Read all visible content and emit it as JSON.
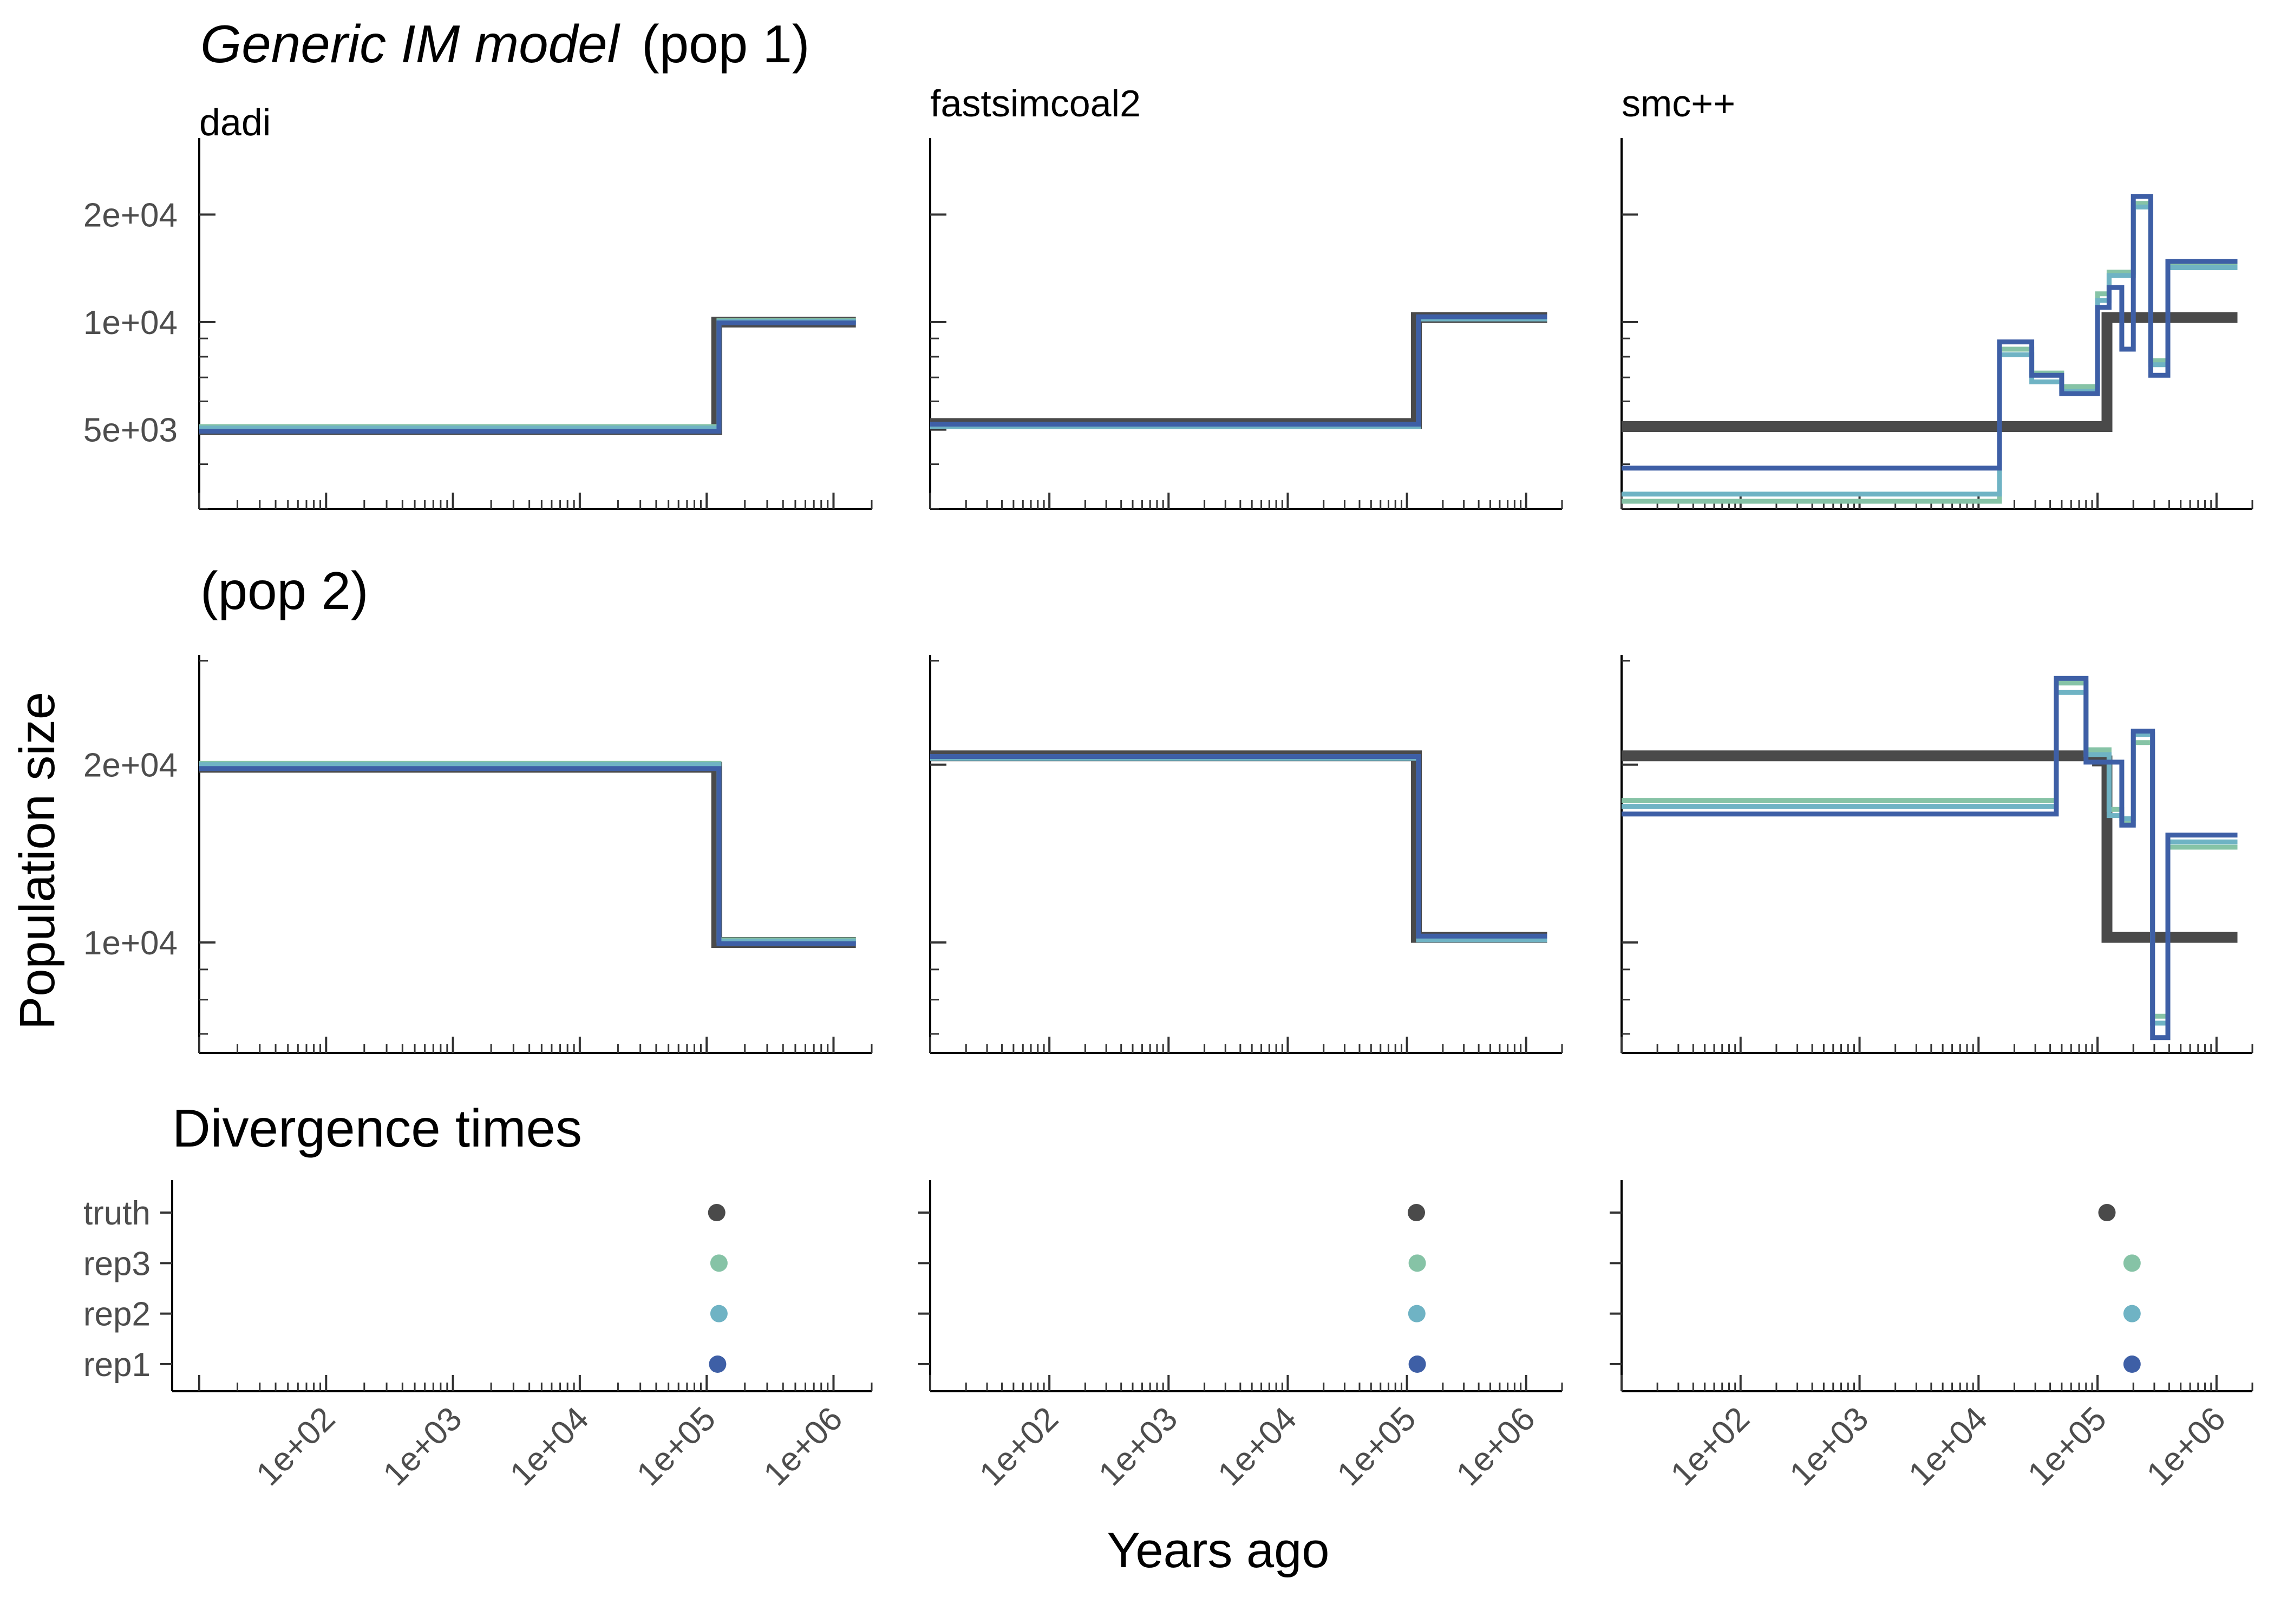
{
  "figure": {
    "title_italic": "Generic IM model",
    "title_pop1": "(pop 1)",
    "title_pop2": "(pop 2)",
    "title_div": "Divergence times",
    "ylabel": "Population size",
    "xlabel": "Years ago"
  },
  "colors": {
    "truth": "#4a4a4a",
    "rep1": "#3e5fa6",
    "rep2": "#6fb3c4",
    "rep3": "#86c3a6"
  },
  "chart_data": [
    {
      "type": "line",
      "panel": "pop1-dadi",
      "subtitle": "dadi",
      "x_scale": "log",
      "y_scale": "log",
      "xlim": [
        10,
        2000000
      ],
      "ylim": [
        3000,
        28000
      ],
      "yticks": [
        5000,
        10000,
        20000
      ],
      "ytick_labels": [
        "5e+03",
        "1e+04",
        "2e+04"
      ],
      "series": [
        {
          "name": "truth",
          "x": [
            10,
            120000,
            120000,
            1500000
          ],
          "y": [
            5000,
            5000,
            10000,
            10000
          ]
        },
        {
          "name": "rep3",
          "x": [
            10,
            125000,
            125000,
            1500000
          ],
          "y": [
            5100,
            5100,
            10100,
            10100
          ]
        },
        {
          "name": "rep2",
          "x": [
            10,
            125000,
            125000,
            1500000
          ],
          "y": [
            5050,
            5050,
            10050,
            10050
          ]
        },
        {
          "name": "rep1",
          "x": [
            10,
            125000,
            125000,
            1500000
          ],
          "y": [
            4950,
            4950,
            9950,
            9950
          ]
        }
      ]
    },
    {
      "type": "line",
      "panel": "pop1-fastsimcoal2",
      "subtitle": "fastsimcoal2",
      "x_scale": "log",
      "y_scale": "log",
      "xlim": [
        10,
        2000000
      ],
      "ylim": [
        3000,
        28000
      ],
      "series": [
        {
          "name": "truth",
          "x": [
            10,
            120000,
            120000,
            1500000
          ],
          "y": [
            5200,
            5200,
            10300,
            10300
          ]
        },
        {
          "name": "rep3",
          "x": [
            10,
            125000,
            125000,
            1500000
          ],
          "y": [
            5150,
            5150,
            10250,
            10250
          ]
        },
        {
          "name": "rep2",
          "x": [
            10,
            125000,
            125000,
            1500000
          ],
          "y": [
            5100,
            5100,
            10200,
            10200
          ]
        },
        {
          "name": "rep1",
          "x": [
            10,
            125000,
            125000,
            1500000
          ],
          "y": [
            5180,
            5180,
            10350,
            10350
          ]
        }
      ]
    },
    {
      "type": "line",
      "panel": "pop1-smcpp",
      "subtitle": "smc++",
      "x_scale": "log",
      "y_scale": "log",
      "xlim": [
        10,
        2000000
      ],
      "ylim": [
        3000,
        28000
      ],
      "series": [
        {
          "name": "truth",
          "x": [
            10,
            120000,
            120000,
            1500000
          ],
          "y": [
            5100,
            5100,
            10300,
            10300
          ]
        },
        {
          "name": "rep3",
          "x": [
            10,
            15000,
            15000,
            28000,
            28000,
            50000,
            50000,
            100000,
            100000,
            125000,
            125000,
            200000,
            200000,
            280000,
            280000,
            390000,
            390000,
            1500000
          ],
          "y": [
            3150,
            3150,
            8400,
            8400,
            7200,
            7200,
            6600,
            6600,
            12000,
            12000,
            13800,
            13800,
            21500,
            21500,
            7800,
            7800,
            14400,
            14400
          ]
        },
        {
          "name": "rep2",
          "x": [
            10,
            15000,
            15000,
            28000,
            28000,
            50000,
            50000,
            100000,
            100000,
            125000,
            125000,
            200000,
            200000,
            280000,
            280000,
            390000,
            390000,
            1500000
          ],
          "y": [
            3300,
            3300,
            8100,
            8100,
            6800,
            6800,
            6400,
            6400,
            11500,
            11500,
            13500,
            13500,
            21000,
            21000,
            7600,
            7600,
            14200,
            14200
          ]
        },
        {
          "name": "rep1",
          "x": [
            10,
            15000,
            15000,
            28000,
            28000,
            50000,
            50000,
            100000,
            100000,
            125000,
            125000,
            160000,
            160000,
            200000,
            200000,
            280000,
            280000,
            390000,
            390000,
            1500000
          ],
          "y": [
            3900,
            3900,
            8800,
            8800,
            7100,
            7100,
            6300,
            6300,
            11000,
            11000,
            12500,
            12500,
            8400,
            8400,
            22500,
            22500,
            7100,
            7100,
            14800,
            14800
          ]
        }
      ]
    },
    {
      "type": "line",
      "panel": "pop2-dadi",
      "x_scale": "log",
      "y_scale": "log",
      "xlim": [
        10,
        2000000
      ],
      "ylim": [
        6500,
        32000
      ],
      "yticks": [
        10000,
        20000
      ],
      "ytick_labels": [
        "1e+04",
        "2e+04"
      ],
      "series": [
        {
          "name": "truth",
          "x": [
            10,
            120000,
            120000,
            1500000
          ],
          "y": [
            19800,
            19800,
            10000,
            10000
          ]
        },
        {
          "name": "rep3",
          "x": [
            10,
            125000,
            125000,
            1500000
          ],
          "y": [
            20100,
            20100,
            10100,
            10100
          ]
        },
        {
          "name": "rep2",
          "x": [
            10,
            125000,
            125000,
            1500000
          ],
          "y": [
            20000,
            20000,
            10050,
            10050
          ]
        },
        {
          "name": "rep1",
          "x": [
            10,
            125000,
            125000,
            1500000
          ],
          "y": [
            19700,
            19700,
            9950,
            9950
          ]
        }
      ]
    },
    {
      "type": "line",
      "panel": "pop2-fastsimcoal2",
      "x_scale": "log",
      "y_scale": "log",
      "xlim": [
        10,
        2000000
      ],
      "ylim": [
        6500,
        32000
      ],
      "series": [
        {
          "name": "truth",
          "x": [
            10,
            120000,
            120000,
            1500000
          ],
          "y": [
            20700,
            20700,
            10200,
            10200
          ]
        },
        {
          "name": "rep3",
          "x": [
            10,
            125000,
            125000,
            1500000
          ],
          "y": [
            20600,
            20600,
            10150,
            10150
          ]
        },
        {
          "name": "rep2",
          "x": [
            10,
            125000,
            125000,
            1500000
          ],
          "y": [
            20500,
            20500,
            10100,
            10100
          ]
        },
        {
          "name": "rep1",
          "x": [
            10,
            125000,
            125000,
            1500000
          ],
          "y": [
            20650,
            20650,
            10250,
            10250
          ]
        }
      ]
    },
    {
      "type": "line",
      "panel": "pop2-smcpp",
      "x_scale": "log",
      "y_scale": "log",
      "xlim": [
        10,
        2000000
      ],
      "ylim": [
        6500,
        32000
      ],
      "series": [
        {
          "name": "truth",
          "x": [
            10,
            100000,
            100000,
            120000,
            120000,
            1500000
          ],
          "y": [
            20700,
            20700,
            20300,
            20300,
            10200,
            10200
          ]
        },
        {
          "name": "rep3",
          "x": [
            10,
            45000,
            45000,
            80000,
            80000,
            125000,
            125000,
            160000,
            160000,
            200000,
            200000,
            290000,
            290000,
            390000,
            390000,
            1500000
          ],
          "y": [
            17400,
            17400,
            27500,
            27500,
            21200,
            21200,
            16800,
            16800,
            15900,
            15900,
            21800,
            21800,
            7500,
            7500,
            14500,
            14500
          ]
        },
        {
          "name": "rep2",
          "x": [
            10,
            45000,
            45000,
            80000,
            80000,
            125000,
            125000,
            160000,
            160000,
            200000,
            200000,
            290000,
            290000,
            390000,
            390000,
            1500000
          ],
          "y": [
            17000,
            17000,
            26500,
            26500,
            20800,
            20800,
            16400,
            16400,
            16200,
            16200,
            22500,
            22500,
            7300,
            7300,
            14800,
            14800
          ]
        },
        {
          "name": "rep1",
          "x": [
            10,
            45000,
            45000,
            80000,
            80000,
            160000,
            160000,
            200000,
            200000,
            290000,
            290000,
            390000,
            390000,
            1500000
          ],
          "y": [
            16500,
            16500,
            28000,
            28000,
            20200,
            20200,
            15800,
            15800,
            22800,
            22800,
            6900,
            6900,
            15200,
            15200
          ]
        }
      ]
    },
    {
      "type": "scatter",
      "panel": "div-dadi",
      "x_scale": "log",
      "xlim": [
        10,
        2000000
      ],
      "categories": [
        "rep1",
        "rep2",
        "rep3",
        "truth"
      ],
      "points": [
        {
          "name": "truth",
          "x": 120000
        },
        {
          "name": "rep3",
          "x": 125000
        },
        {
          "name": "rep2",
          "x": 125000
        },
        {
          "name": "rep1",
          "x": 122000
        }
      ],
      "xticks": [
        100,
        1000,
        10000,
        100000,
        1000000
      ],
      "xtick_labels": [
        "1e+02",
        "1e+03",
        "1e+04",
        "1e+05",
        "1e+06"
      ]
    },
    {
      "type": "scatter",
      "panel": "div-fastsimcoal2",
      "x_scale": "log",
      "xlim": [
        10,
        2000000
      ],
      "categories": [
        "rep1",
        "rep2",
        "rep3",
        "truth"
      ],
      "points": [
        {
          "name": "truth",
          "x": 120000
        },
        {
          "name": "rep3",
          "x": 122000
        },
        {
          "name": "rep2",
          "x": 121000
        },
        {
          "name": "rep1",
          "x": 122000
        }
      ],
      "xticks": [
        100,
        1000,
        10000,
        100000,
        1000000
      ],
      "xtick_labels": [
        "1e+02",
        "1e+03",
        "1e+04",
        "1e+05",
        "1e+06"
      ]
    },
    {
      "type": "scatter",
      "panel": "div-smcpp",
      "x_scale": "log",
      "xlim": [
        10,
        2000000
      ],
      "categories": [
        "rep1",
        "rep2",
        "rep3",
        "truth"
      ],
      "points": [
        {
          "name": "truth",
          "x": 120000
        },
        {
          "name": "rep3",
          "x": 195000
        },
        {
          "name": "rep2",
          "x": 195000
        },
        {
          "name": "rep1",
          "x": 195000
        }
      ],
      "xticks": [
        100,
        1000,
        10000,
        100000,
        1000000
      ],
      "xtick_labels": [
        "1e+02",
        "1e+03",
        "1e+04",
        "1e+05",
        "1e+06"
      ]
    }
  ]
}
